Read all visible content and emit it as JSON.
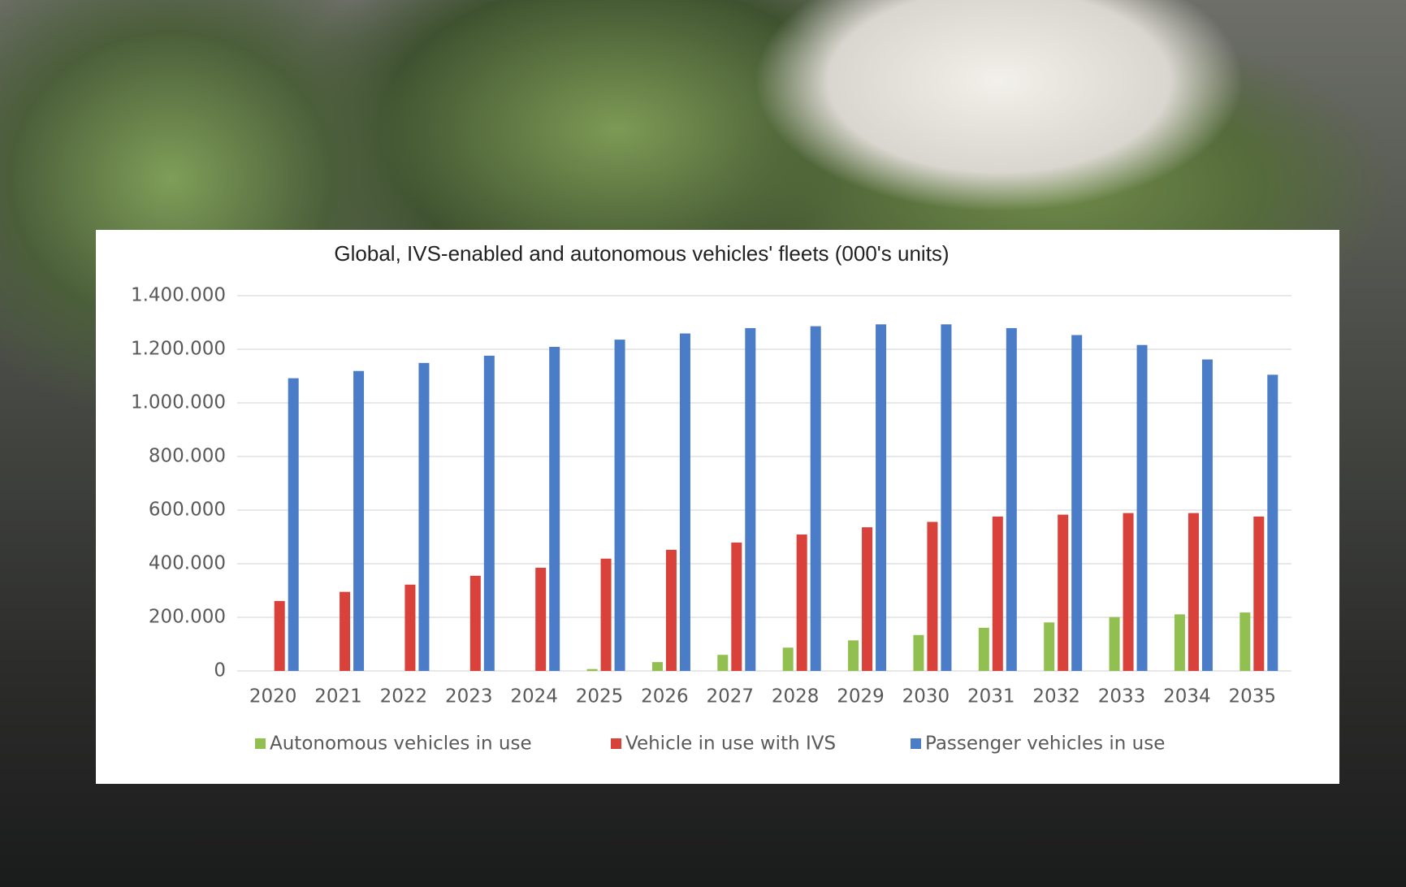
{
  "chart_data": {
    "type": "bar",
    "title": "Global, IVS-enabled and autonomous vehicles' fleets (000's units)",
    "categories": [
      "2020",
      "2021",
      "2022",
      "2023",
      "2024",
      "2025",
      "2026",
      "2027",
      "2028",
      "2029",
      "2030",
      "2031",
      "2032",
      "2033",
      "2034",
      "2035"
    ],
    "series": [
      {
        "name": "Autonomous vehicles in use",
        "color": "#92c050",
        "values": [
          0,
          0,
          0,
          0,
          0,
          7000,
          33000,
          60000,
          87000,
          114000,
          134000,
          161000,
          181000,
          201000,
          211000,
          218000
        ]
      },
      {
        "name": "Vehicle in use with IVS",
        "color": "#d9413b",
        "values": [
          261000,
          295000,
          322000,
          355000,
          385000,
          419000,
          452000,
          479000,
          509000,
          536000,
          556000,
          576000,
          583000,
          589000,
          589000,
          576000
        ]
      },
      {
        "name": "Passenger vehicles in use",
        "color": "#4a7cc8",
        "values": [
          1092000,
          1119000,
          1149000,
          1176000,
          1209000,
          1236000,
          1259000,
          1279000,
          1286000,
          1293000,
          1293000,
          1279000,
          1253000,
          1216000,
          1162000,
          1105000
        ]
      }
    ],
    "ylim": [
      0,
      1400000
    ],
    "yticks": [
      0,
      {
        "value": 200000,
        "label": "200.000"
      },
      {
        "value": 400000,
        "label": "400.000"
      },
      {
        "value": 600000,
        "label": "600.000"
      },
      {
        "value": 800000,
        "label": "800.000"
      },
      {
        "value": 1000000,
        "label": "1.000.000"
      },
      {
        "value": 1200000,
        "label": "1.200.000"
      },
      {
        "value": 1400000,
        "label": "1.400.000"
      }
    ],
    "grid": true,
    "legend": "bottom"
  }
}
